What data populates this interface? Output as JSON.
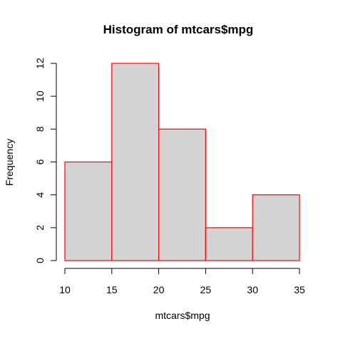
{
  "chart_data": {
    "type": "bar",
    "title": "Histogram of mtcars$mpg",
    "xlabel": "mtcars$mpg",
    "ylabel": "Frequency",
    "bins": [
      {
        "start": 10,
        "end": 15,
        "count": 6
      },
      {
        "start": 15,
        "end": 20,
        "count": 12
      },
      {
        "start": 20,
        "end": 25,
        "count": 8
      },
      {
        "start": 25,
        "end": 30,
        "count": 2
      },
      {
        "start": 30,
        "end": 35,
        "count": 4
      }
    ],
    "xlim": [
      10,
      35
    ],
    "ylim": [
      0,
      12
    ],
    "x_ticks": [
      10,
      15,
      20,
      25,
      30,
      35
    ],
    "y_ticks": [
      0,
      2,
      4,
      6,
      8,
      10,
      12
    ],
    "grid": false,
    "bar_fill_color": "#d3d3d3",
    "bar_border_color": "#ff0000"
  }
}
